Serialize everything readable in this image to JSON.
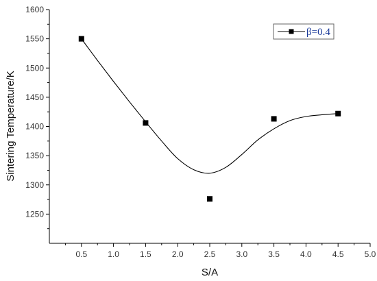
{
  "chart_data": {
    "type": "scatter",
    "xlabel": "S/A",
    "ylabel": "Sintering Temperature/K",
    "xlim": [
      0,
      5.0
    ],
    "ylim": [
      1200,
      1600
    ],
    "xticks": [
      "0.5",
      "1.0",
      "1.5",
      "2.0",
      "2.5",
      "3.0",
      "3.5",
      "4.0",
      "4.5",
      "5.0"
    ],
    "yticks": [
      "1250",
      "1300",
      "1350",
      "1400",
      "1450",
      "1500",
      "1550",
      "1600"
    ],
    "series": [
      {
        "name": "β=0.4",
        "marker": "square",
        "color": "#000000",
        "points": [
          {
            "x": 0.5,
            "y": 1550
          },
          {
            "x": 1.5,
            "y": 1406
          },
          {
            "x": 2.5,
            "y": 1276
          },
          {
            "x": 3.5,
            "y": 1413
          },
          {
            "x": 4.5,
            "y": 1422
          }
        ],
        "fit_curve": {
          "x": [
            0.5,
            0.75,
            1.0,
            1.25,
            1.5,
            1.75,
            2.0,
            2.25,
            2.5,
            2.75,
            3.0,
            3.25,
            3.5,
            3.75,
            4.0,
            4.25,
            4.5
          ],
          "y": [
            1550,
            1513,
            1477,
            1442,
            1408,
            1375,
            1345,
            1326,
            1320,
            1330,
            1352,
            1377,
            1396,
            1410,
            1417,
            1420,
            1422
          ]
        }
      }
    ],
    "legend_position": "top-right",
    "grid": false
  }
}
